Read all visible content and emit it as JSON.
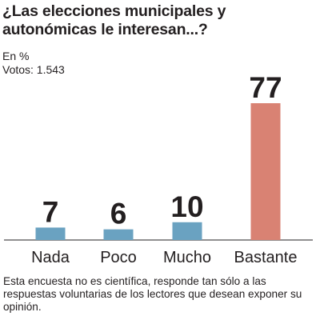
{
  "chart_data": {
    "type": "bar",
    "title": "¿Las elecciones municipales y autonómicas le interesan...?",
    "unit_label": "En %",
    "votes_label": "Votos: 1.543",
    "categories": [
      "Nada",
      "Poco",
      "Mucho",
      "Bastante"
    ],
    "values": [
      7,
      6,
      10,
      77
    ],
    "value_labels": [
      "7",
      "6",
      "10",
      "77"
    ],
    "colors": [
      "#6aa2c1",
      "#6aa2c1",
      "#6aa2c1",
      "#d98273"
    ],
    "ylim": [
      0,
      77
    ],
    "grid": false,
    "legend": "none"
  },
  "footnote": "Esta encuesta no es científica, responde tan sólo a las respuestas voluntarias de los lectores que desean exponer su opinión."
}
